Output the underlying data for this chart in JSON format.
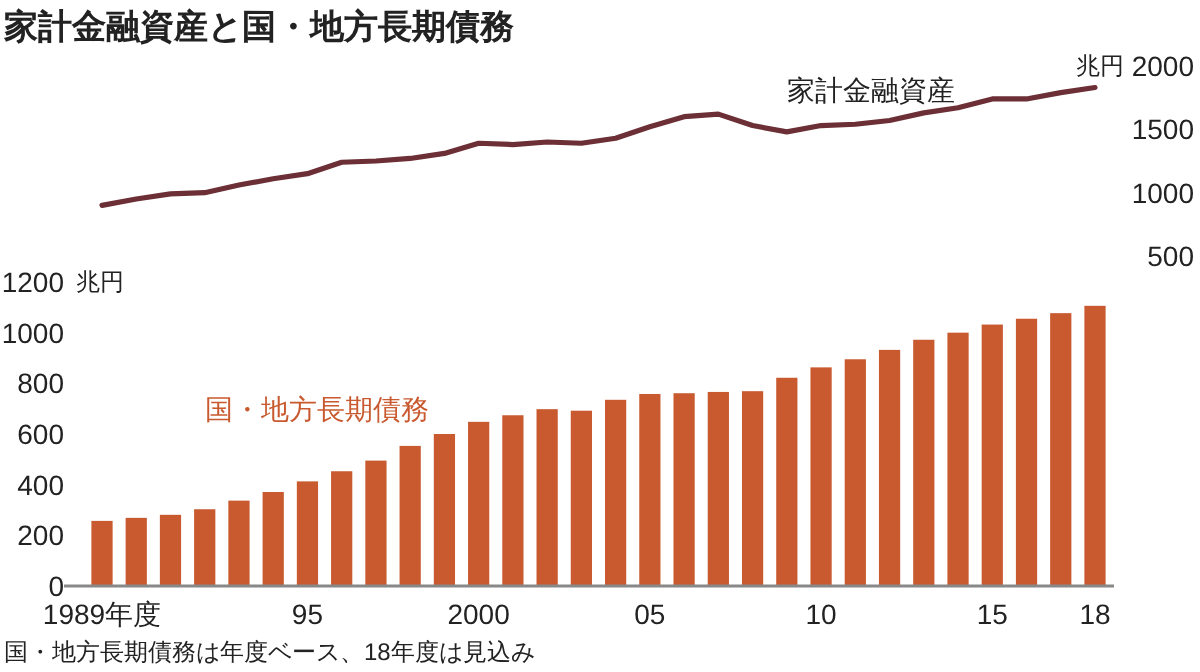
{
  "chart_data": [
    {
      "type": "line",
      "title": "家計金融資産と国・地方長期債務",
      "ylabel": "兆円",
      "categories": [
        null,
        null,
        null,
        null,
        null,
        null,
        null,
        null,
        null,
        null,
        null,
        null,
        null,
        null,
        null,
        null,
        null,
        null,
        null,
        null,
        null,
        null,
        null,
        null,
        null,
        null,
        null,
        null,
        null,
        null
      ],
      "series": [
        {
          "name": "家計金融資産",
          "color": "#6b2f35",
          "values": [
            900,
            950,
            990,
            1000,
            1060,
            1110,
            1150,
            1240,
            1250,
            1270,
            1310,
            1390,
            1380,
            1400,
            1390,
            1430,
            1520,
            1600,
            1620,
            1530,
            1480,
            1530,
            1540,
            1570,
            1630,
            1670,
            1740,
            1740,
            1790,
            1830
          ]
        }
      ],
      "ylim": [
        500,
        2000
      ],
      "yticks": [
        500,
        1000,
        1500,
        2000
      ]
    },
    {
      "type": "bar",
      "ylabel": "兆円",
      "categories": [
        "1989年度",
        null,
        null,
        null,
        null,
        null,
        "95",
        null,
        null,
        null,
        null,
        "2000",
        null,
        null,
        null,
        null,
        "05",
        null,
        null,
        null,
        null,
        "10",
        null,
        null,
        null,
        null,
        "15",
        null,
        null,
        "18"
      ],
      "series": [
        {
          "name": "国・地方長期債務",
          "color": "#c95a30",
          "values": [
            257,
            269,
            281,
            303,
            337,
            371,
            413,
            453,
            495,
            553,
            600,
            648,
            674,
            698,
            692,
            735,
            758,
            761,
            766,
            769,
            822,
            863,
            895,
            932,
            972,
            1000,
            1032,
            1055,
            1077,
            1106
          ]
        }
      ],
      "ylim": [
        0,
        1200
      ],
      "yticks": [
        0,
        200,
        400,
        600,
        800,
        1000,
        1200
      ],
      "annotations": [
        "国・地方長期債務は年度ベース、18年度は見込み"
      ]
    }
  ]
}
